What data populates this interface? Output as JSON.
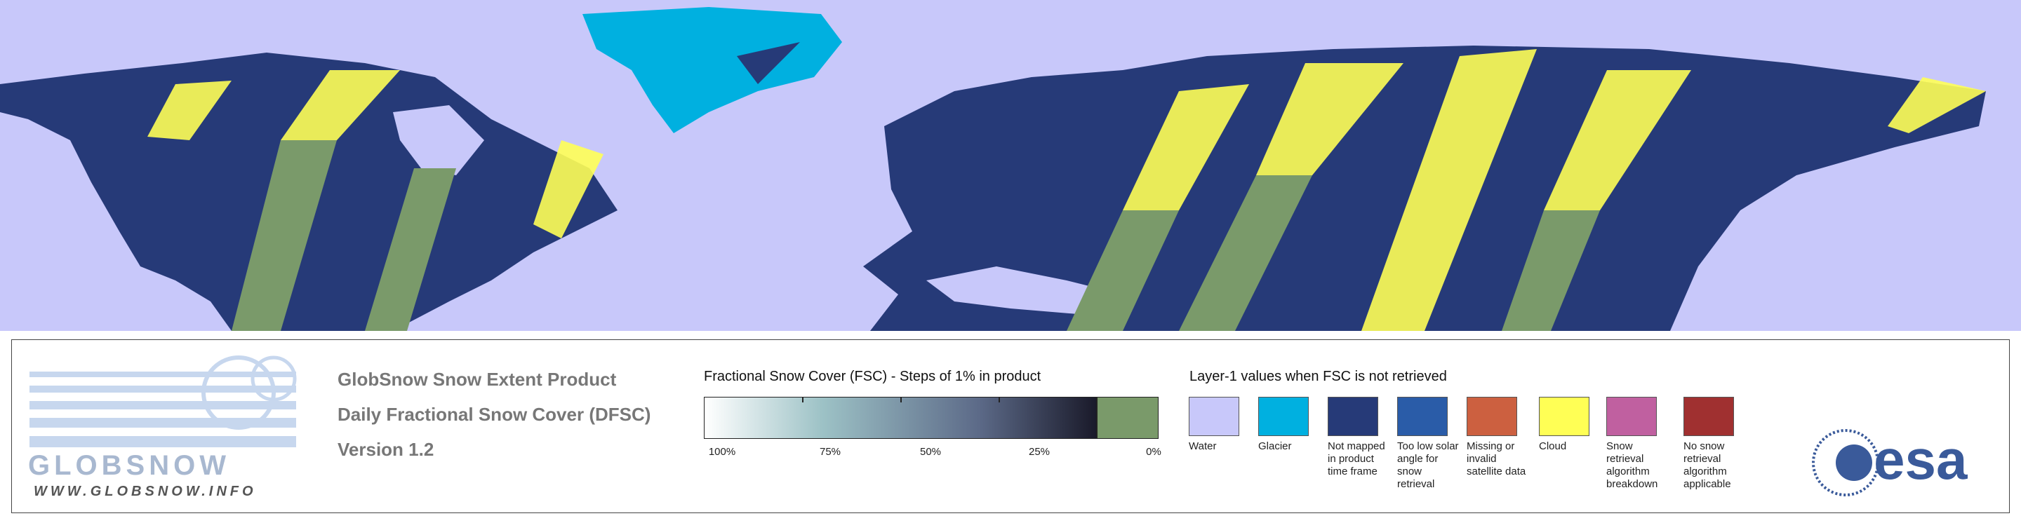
{
  "product": {
    "title": "GlobSnow Snow Extent Product",
    "subtitle": "Daily Fractional Snow Cover (DFSC)",
    "version": "Version 1.2"
  },
  "logo": {
    "name": "GLOBSNOW",
    "url": "WWW.GLOBSNOW.INFO",
    "agency": "esa"
  },
  "fsc_scale": {
    "title": "Fractional Snow Cover (FSC) - Steps of 1% in product",
    "labels": [
      "100%",
      "75%",
      "50%",
      "25%",
      "0%"
    ],
    "snow_free_color": "#7a9a6a"
  },
  "layer1": {
    "title": "Layer-1 values when FSC is not retrieved",
    "items": [
      {
        "label": "Water",
        "color": "#c8c8fa"
      },
      {
        "label": "Glacier",
        "color": "#00b0e0"
      },
      {
        "label": "Not mapped in product time frame",
        "color": "#263a78"
      },
      {
        "label": "Too low solar angle for snow retrieval",
        "color": "#2a5ca8"
      },
      {
        "label": "Missing or invalid satellite data",
        "color": "#cc6040"
      },
      {
        "label": "Cloud",
        "color": "#ffff55"
      },
      {
        "label": "Snow retrieval algorithm breakdown",
        "color": "#c060a0"
      },
      {
        "label": "No snow retrieval algorithm applicable",
        "color": "#a03030"
      }
    ]
  }
}
